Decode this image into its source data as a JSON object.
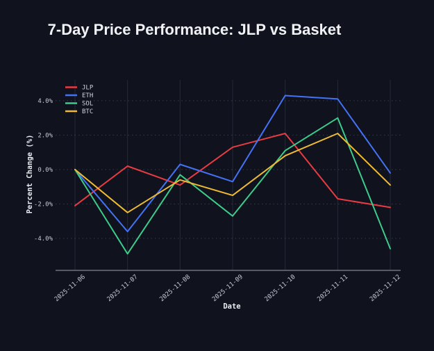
{
  "page": {
    "background_color": "#10131e"
  },
  "chart_data": {
    "type": "line",
    "title": "7-Day Price Performance: JLP vs Basket",
    "xlabel": "Date",
    "ylabel": "Percent Change (%)",
    "x": [
      "2025-11-06",
      "2025-11-07",
      "2025-11-08",
      "2025-11-09",
      "2025-11-10",
      "2025-11-11",
      "2025-11-12"
    ],
    "series": [
      {
        "name": "JLP",
        "color": "#e83b42",
        "values": [
          -2.1,
          0.2,
          -0.9,
          1.3,
          2.1,
          -1.7,
          -2.2
        ]
      },
      {
        "name": "ETH",
        "color": "#4472f5",
        "values": [
          0.0,
          -3.6,
          0.3,
          -0.7,
          4.3,
          4.1,
          -0.2
        ]
      },
      {
        "name": "SOL",
        "color": "#3dcc8a",
        "values": [
          0.0,
          -4.9,
          -0.3,
          -2.7,
          1.1,
          3.0,
          -4.6
        ]
      },
      {
        "name": "BTC",
        "color": "#eebb33",
        "values": [
          0.0,
          -2.5,
          -0.6,
          -1.5,
          0.8,
          2.1,
          -0.9
        ]
      }
    ],
    "yticks": [
      4.0,
      2.0,
      0.0,
      -2.0,
      -4.0
    ],
    "ytick_labels": [
      "4.0%",
      "2.0%",
      "0.0%",
      "-2.0%",
      "-4.0%"
    ],
    "ylim": [
      -5.86,
      5.33
    ],
    "legend_position": "top-left",
    "legend_entries": [
      "JLP",
      "ETH",
      "SOL",
      "BTC"
    ],
    "grid": true,
    "styles": {
      "vgrid_color": "#242a39",
      "hgrid_color": "#4a5164",
      "spine_color": "#7f8694",
      "line_width": 2
    }
  }
}
